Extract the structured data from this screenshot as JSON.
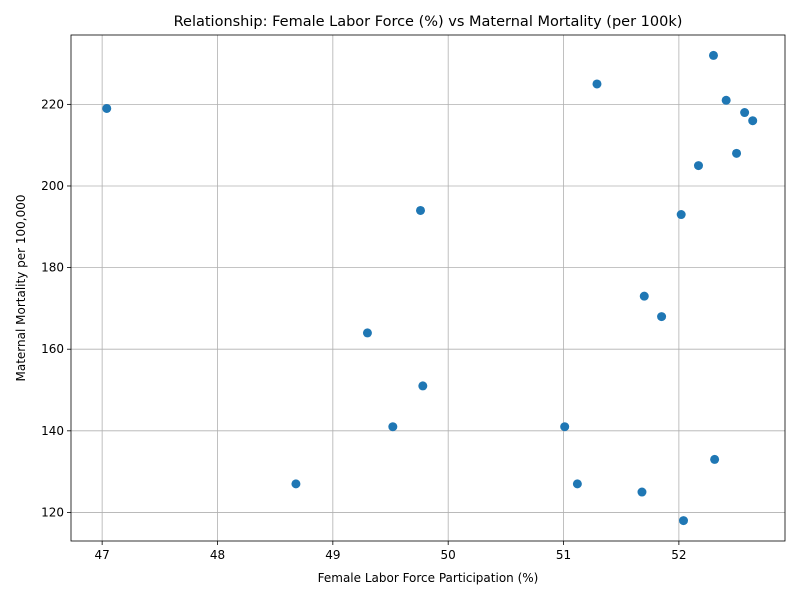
{
  "chart_data": {
    "type": "scatter",
    "title": "Relationship: Female Labor Force (%) vs Maternal Mortality (per 100k)",
    "xlabel": "Female Labor Force Participation (%)",
    "ylabel": "Maternal Mortality per 100,000",
    "xlim": [
      46.73,
      52.92
    ],
    "ylim": [
      113,
      237
    ],
    "xticks": [
      47,
      48,
      49,
      50,
      51,
      52
    ],
    "yticks": [
      120,
      140,
      160,
      180,
      200,
      220
    ],
    "grid": true,
    "color": "#1f77b4",
    "points": [
      {
        "x": 47.04,
        "y": 219
      },
      {
        "x": 48.68,
        "y": 127
      },
      {
        "x": 49.3,
        "y": 164
      },
      {
        "x": 49.52,
        "y": 141
      },
      {
        "x": 49.76,
        "y": 194
      },
      {
        "x": 49.78,
        "y": 151
      },
      {
        "x": 51.01,
        "y": 141
      },
      {
        "x": 51.12,
        "y": 127
      },
      {
        "x": 51.29,
        "y": 225
      },
      {
        "x": 51.68,
        "y": 125
      },
      {
        "x": 51.7,
        "y": 173
      },
      {
        "x": 51.85,
        "y": 168
      },
      {
        "x": 52.02,
        "y": 193
      },
      {
        "x": 52.04,
        "y": 118
      },
      {
        "x": 52.17,
        "y": 205
      },
      {
        "x": 52.3,
        "y": 232
      },
      {
        "x": 52.31,
        "y": 133
      },
      {
        "x": 52.41,
        "y": 221
      },
      {
        "x": 52.5,
        "y": 208
      },
      {
        "x": 52.57,
        "y": 218
      },
      {
        "x": 52.64,
        "y": 216
      }
    ]
  }
}
